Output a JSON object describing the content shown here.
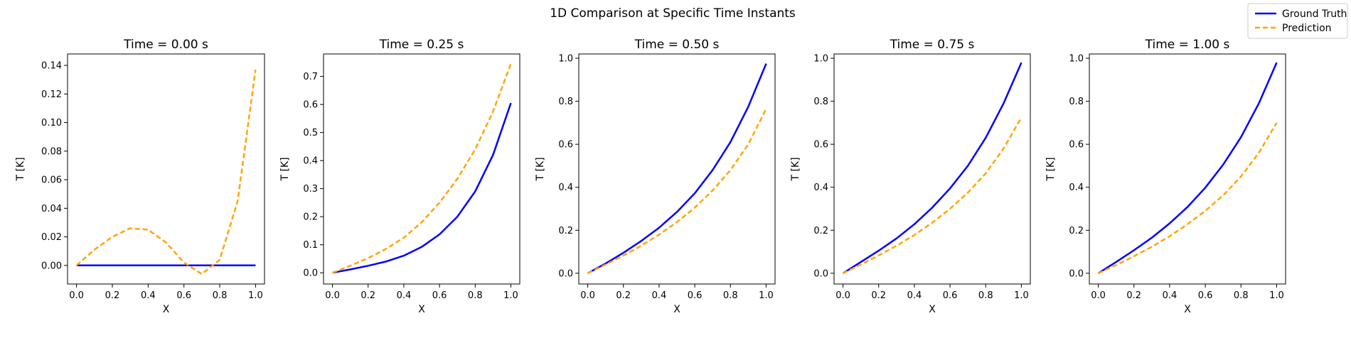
{
  "figure_title": "1D Comparison at Specific Time Instants",
  "legend": {
    "placement": "top-right",
    "entries": [
      {
        "label": "Ground Truth",
        "color": "#0000ff",
        "style": "solid"
      },
      {
        "label": "Prediction",
        "color": "#ffa500",
        "style": "dashed"
      }
    ]
  },
  "chart_data": [
    {
      "type": "line",
      "title": "Time = 0.00 s",
      "xlabel": "X",
      "ylabel": "T [K]",
      "xlim": [
        -0.05,
        1.05
      ],
      "ylim": [
        -0.013,
        0.148
      ],
      "xticks": [
        "0.0",
        "0.2",
        "0.4",
        "0.6",
        "0.8",
        "1.0"
      ],
      "yticks": [
        "0.00",
        "0.02",
        "0.04",
        "0.06",
        "0.08",
        "0.10",
        "0.12",
        "0.14"
      ],
      "x": [
        0.0,
        0.1,
        0.2,
        0.3,
        0.4,
        0.5,
        0.6,
        0.7,
        0.8,
        0.9,
        1.0
      ],
      "series": [
        {
          "name": "Ground Truth",
          "color": "#0000ff",
          "style": "solid",
          "values": [
            0.0,
            0.0,
            0.0,
            0.0,
            0.0,
            0.0,
            0.0,
            0.0,
            0.0,
            0.0,
            0.0
          ]
        },
        {
          "name": "Prediction",
          "color": "#ffa500",
          "style": "dashed",
          "values": [
            0.0,
            0.011,
            0.02,
            0.026,
            0.025,
            0.016,
            0.002,
            -0.006,
            0.004,
            0.045,
            0.137
          ]
        }
      ]
    },
    {
      "type": "line",
      "title": "Time = 0.25 s",
      "xlabel": "X",
      "ylabel": "T [K]",
      "xlim": [
        -0.05,
        1.05
      ],
      "ylim": [
        -0.04,
        0.78
      ],
      "xticks": [
        "0.0",
        "0.2",
        "0.4",
        "0.6",
        "0.8",
        "1.0"
      ],
      "yticks": [
        "0.0",
        "0.1",
        "0.2",
        "0.3",
        "0.4",
        "0.5",
        "0.6",
        "0.7"
      ],
      "x": [
        0.0,
        0.1,
        0.2,
        0.3,
        0.4,
        0.5,
        0.6,
        0.7,
        0.8,
        0.9,
        1.0
      ],
      "series": [
        {
          "name": "Ground Truth",
          "color": "#0000ff",
          "style": "solid",
          "values": [
            0.0,
            0.012,
            0.025,
            0.04,
            0.061,
            0.092,
            0.137,
            0.2,
            0.29,
            0.42,
            0.605
          ]
        },
        {
          "name": "Prediction",
          "color": "#ffa500",
          "style": "dashed",
          "values": [
            0.0,
            0.025,
            0.052,
            0.085,
            0.125,
            0.18,
            0.25,
            0.335,
            0.44,
            0.575,
            0.745
          ]
        }
      ]
    },
    {
      "type": "line",
      "title": "Time = 0.50 s",
      "xlabel": "X",
      "ylabel": "T [K]",
      "xlim": [
        -0.05,
        1.05
      ],
      "ylim": [
        -0.05,
        1.02
      ],
      "xticks": [
        "0.0",
        "0.2",
        "0.4",
        "0.6",
        "0.8",
        "1.0"
      ],
      "yticks": [
        "0.0",
        "0.2",
        "0.4",
        "0.6",
        "0.8",
        "1.0"
      ],
      "x": [
        0.0,
        0.1,
        0.2,
        0.3,
        0.4,
        0.5,
        0.6,
        0.7,
        0.8,
        0.9,
        1.0
      ],
      "series": [
        {
          "name": "Ground Truth",
          "color": "#0000ff",
          "style": "solid",
          "values": [
            0.0,
            0.045,
            0.095,
            0.15,
            0.212,
            0.285,
            0.372,
            0.48,
            0.61,
            0.775,
            0.975
          ]
        },
        {
          "name": "Prediction",
          "color": "#ffa500",
          "style": "dashed",
          "values": [
            0.0,
            0.04,
            0.082,
            0.128,
            0.18,
            0.238,
            0.305,
            0.385,
            0.48,
            0.6,
            0.765
          ]
        }
      ]
    },
    {
      "type": "line",
      "title": "Time = 0.75 s",
      "xlabel": "X",
      "ylabel": "T [K]",
      "xlim": [
        -0.05,
        1.05
      ],
      "ylim": [
        -0.05,
        1.02
      ],
      "xticks": [
        "0.0",
        "0.2",
        "0.4",
        "0.6",
        "0.8",
        "1.0"
      ],
      "yticks": [
        "0.0",
        "0.2",
        "0.4",
        "0.6",
        "0.8",
        "1.0"
      ],
      "x": [
        0.0,
        0.1,
        0.2,
        0.3,
        0.4,
        0.5,
        0.6,
        0.7,
        0.8,
        0.9,
        1.0
      ],
      "series": [
        {
          "name": "Ground Truth",
          "color": "#0000ff",
          "style": "solid",
          "values": [
            0.0,
            0.052,
            0.105,
            0.162,
            0.228,
            0.305,
            0.395,
            0.5,
            0.63,
            0.79,
            0.98
          ]
        },
        {
          "name": "Prediction",
          "color": "#ffa500",
          "style": "dashed",
          "values": [
            0.0,
            0.04,
            0.083,
            0.128,
            0.178,
            0.235,
            0.3,
            0.375,
            0.465,
            0.58,
            0.725
          ]
        }
      ]
    },
    {
      "type": "line",
      "title": "Time = 1.00 s",
      "xlabel": "X",
      "ylabel": "T [K]",
      "xlim": [
        -0.05,
        1.05
      ],
      "ylim": [
        -0.05,
        1.02
      ],
      "xticks": [
        "0.0",
        "0.2",
        "0.4",
        "0.6",
        "0.8",
        "1.0"
      ],
      "yticks": [
        "0.0",
        "0.2",
        "0.4",
        "0.6",
        "0.8",
        "1.0"
      ],
      "x": [
        0.0,
        0.1,
        0.2,
        0.3,
        0.4,
        0.5,
        0.6,
        0.7,
        0.8,
        0.9,
        1.0
      ],
      "series": [
        {
          "name": "Ground Truth",
          "color": "#0000ff",
          "style": "solid",
          "values": [
            0.0,
            0.052,
            0.107,
            0.165,
            0.232,
            0.308,
            0.398,
            0.505,
            0.633,
            0.79,
            0.98
          ]
        },
        {
          "name": "Prediction",
          "color": "#ffa500",
          "style": "dashed",
          "values": [
            0.0,
            0.038,
            0.079,
            0.123,
            0.172,
            0.228,
            0.29,
            0.362,
            0.45,
            0.56,
            0.7
          ]
        }
      ]
    }
  ]
}
